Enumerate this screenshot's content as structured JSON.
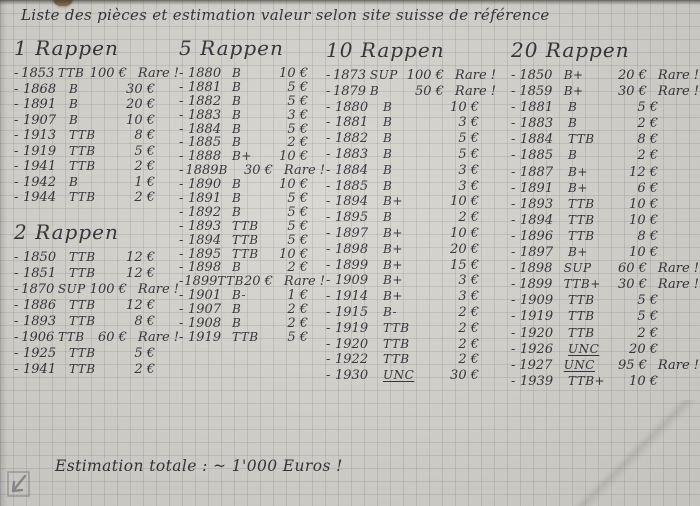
{
  "title": "Liste des pièces et estimation valeur selon site suisse de référence",
  "footer": "Estimation totale : ~ 1'000 Euros !",
  "meta": {
    "bullet": "-",
    "paper_color": "#d7d5cf",
    "grid_color": "#767b86",
    "ink_color": "#2e2e34"
  },
  "sections": [
    {
      "heading": "1 Rappen",
      "entries": [
        {
          "y": "1853",
          "g": "TTB",
          "v": "100 €",
          "n": "Rare !"
        },
        {
          "y": "1868",
          "g": "B",
          "v": "30 €"
        },
        {
          "y": "1891",
          "g": "B",
          "v": "20 €"
        },
        {
          "y": "1907",
          "g": "B",
          "v": "10 €"
        },
        {
          "y": "1913",
          "g": "TTB",
          "v": "8 €"
        },
        {
          "y": "1919",
          "g": "TTB",
          "v": "5 €"
        },
        {
          "y": "1941",
          "g": "TTB",
          "v": "2 €"
        },
        {
          "y": "1942",
          "g": "B",
          "v": "1 €"
        },
        {
          "y": "1944",
          "g": "TTB",
          "v": "2 €"
        }
      ]
    },
    {
      "heading": "2 Rappen",
      "entries": [
        {
          "y": "1850",
          "g": "TTB",
          "v": "12 €"
        },
        {
          "y": "1851",
          "g": "TTB",
          "v": "12 €"
        },
        {
          "y": "1870",
          "g": "SUP",
          "v": "100 €",
          "n": "Rare !"
        },
        {
          "y": "1886",
          "g": "TTB",
          "v": "12 €"
        },
        {
          "y": "1893",
          "g": "TTB",
          "v": "8 €"
        },
        {
          "y": "1906",
          "g": "TTB",
          "v": "60 €",
          "n": "Rare !"
        },
        {
          "y": "1925",
          "g": "TTB",
          "v": "5 €"
        },
        {
          "y": "1941",
          "g": "TTB",
          "v": "2 €"
        }
      ]
    },
    {
      "heading": "5 Rappen",
      "entries": [
        {
          "y": "1880",
          "g": "B",
          "v": "10 €"
        },
        {
          "y": "1881",
          "g": "B",
          "v": "5 €"
        },
        {
          "y": "1882",
          "g": "B",
          "v": "5 €"
        },
        {
          "y": "1883",
          "g": "B",
          "v": "3 €"
        },
        {
          "y": "1884",
          "g": "B",
          "v": "5 €"
        },
        {
          "y": "1885",
          "g": "B",
          "v": "2 €"
        },
        {
          "y": "1888",
          "g": "B+",
          "v": "10 €"
        },
        {
          "y": "1889",
          "g": "B",
          "v": "30 €",
          "n": "Rare !"
        },
        {
          "y": "1890",
          "g": "B",
          "v": "10 €"
        },
        {
          "y": "1891",
          "g": "B",
          "v": "5 €"
        },
        {
          "y": "1892",
          "g": "B",
          "v": "5 €"
        },
        {
          "y": "1893",
          "g": "TTB",
          "v": "5 €"
        },
        {
          "y": "1894",
          "g": "TTB",
          "v": "5 €"
        },
        {
          "y": "1895",
          "g": "TTB",
          "v": "10 €"
        },
        {
          "y": "1898",
          "g": "B",
          "v": "2 €"
        },
        {
          "y": "1899",
          "g": "TTB",
          "v": "20 €",
          "n": "Rare !"
        },
        {
          "y": "1901",
          "g": "B-",
          "v": "1 €"
        },
        {
          "y": "1907",
          "g": "B",
          "v": "2 €"
        },
        {
          "y": "1908",
          "g": "B",
          "v": "2 €"
        },
        {
          "y": "1919",
          "g": "TTB",
          "v": "5 €"
        }
      ]
    },
    {
      "heading": "10 Rappen",
      "entries": [
        {
          "y": "1873",
          "g": "SUP",
          "v": "100 €",
          "n": "Rare !"
        },
        {
          "y": "1879",
          "g": "B",
          "v": "50 €",
          "n": "Rare !"
        },
        {
          "y": "1880",
          "g": "B",
          "v": "10 €"
        },
        {
          "y": "1881",
          "g": "B",
          "v": "3 €"
        },
        {
          "y": "1882",
          "g": "B",
          "v": "5 €"
        },
        {
          "y": "1883",
          "g": "B",
          "v": "5 €"
        },
        {
          "y": "1884",
          "g": "B",
          "v": "3 €"
        },
        {
          "y": "1885",
          "g": "B",
          "v": "3 €"
        },
        {
          "y": "1894",
          "g": "B+",
          "v": "10 €"
        },
        {
          "y": "1895",
          "g": "B",
          "v": "2 €"
        },
        {
          "y": "1897",
          "g": "B+",
          "v": "10 €"
        },
        {
          "y": "1898",
          "g": "B+",
          "v": "20 €"
        },
        {
          "y": "1899",
          "g": "B+",
          "v": "15 €"
        },
        {
          "y": "1909",
          "g": "B+",
          "v": "3 €"
        },
        {
          "y": "1914",
          "g": "B+",
          "v": "3 €"
        },
        {
          "y": "1915",
          "g": "B-",
          "v": "2 €"
        },
        {
          "y": "1919",
          "g": "TTB",
          "v": "2 €"
        },
        {
          "y": "1920",
          "g": "TTB",
          "v": "2 €"
        },
        {
          "y": "1922",
          "g": "TTB",
          "v": "2 €"
        },
        {
          "y": "1930",
          "g": "UNC",
          "v": "30 €",
          "u": true
        }
      ]
    },
    {
      "heading": "20 Rappen",
      "entries": [
        {
          "y": "1850",
          "g": "B+",
          "v": "20 €",
          "n": "Rare !"
        },
        {
          "y": "1859",
          "g": "B+",
          "v": "30 €",
          "n": "Rare !"
        },
        {
          "y": "1881",
          "g": "B",
          "v": "5 €"
        },
        {
          "y": "1883",
          "g": "B",
          "v": "2 €"
        },
        {
          "y": "1884",
          "g": "TTB",
          "v": "8 €"
        },
        {
          "y": "1885",
          "g": "B",
          "v": "2 €"
        },
        {
          "y": "1887",
          "g": "B+",
          "v": "12 €"
        },
        {
          "y": "1891",
          "g": "B+",
          "v": "6 €"
        },
        {
          "y": "1893",
          "g": "TTB",
          "v": "10 €"
        },
        {
          "y": "1894",
          "g": "TTB",
          "v": "10 €"
        },
        {
          "y": "1896",
          "g": "TTB",
          "v": "8 €"
        },
        {
          "y": "1897",
          "g": "B+",
          "v": "10 €"
        },
        {
          "y": "1898",
          "g": "SUP",
          "v": "60 €",
          "n": "Rare !"
        },
        {
          "y": "1899",
          "g": "TTB+",
          "v": "30 €",
          "n": "Rare !"
        },
        {
          "y": "1909",
          "g": "TTB",
          "v": "5 €"
        },
        {
          "y": "1919",
          "g": "TTB",
          "v": "5 €"
        },
        {
          "y": "1920",
          "g": "TTB",
          "v": "2 €"
        },
        {
          "y": "1926",
          "g": "UNC",
          "v": "20 €",
          "u": true
        },
        {
          "y": "1927",
          "g": "UNC",
          "v": "95 €",
          "n": "Rare !",
          "u": true
        },
        {
          "y": "1939",
          "g": "TTB+",
          "v": "10 €"
        }
      ]
    }
  ]
}
